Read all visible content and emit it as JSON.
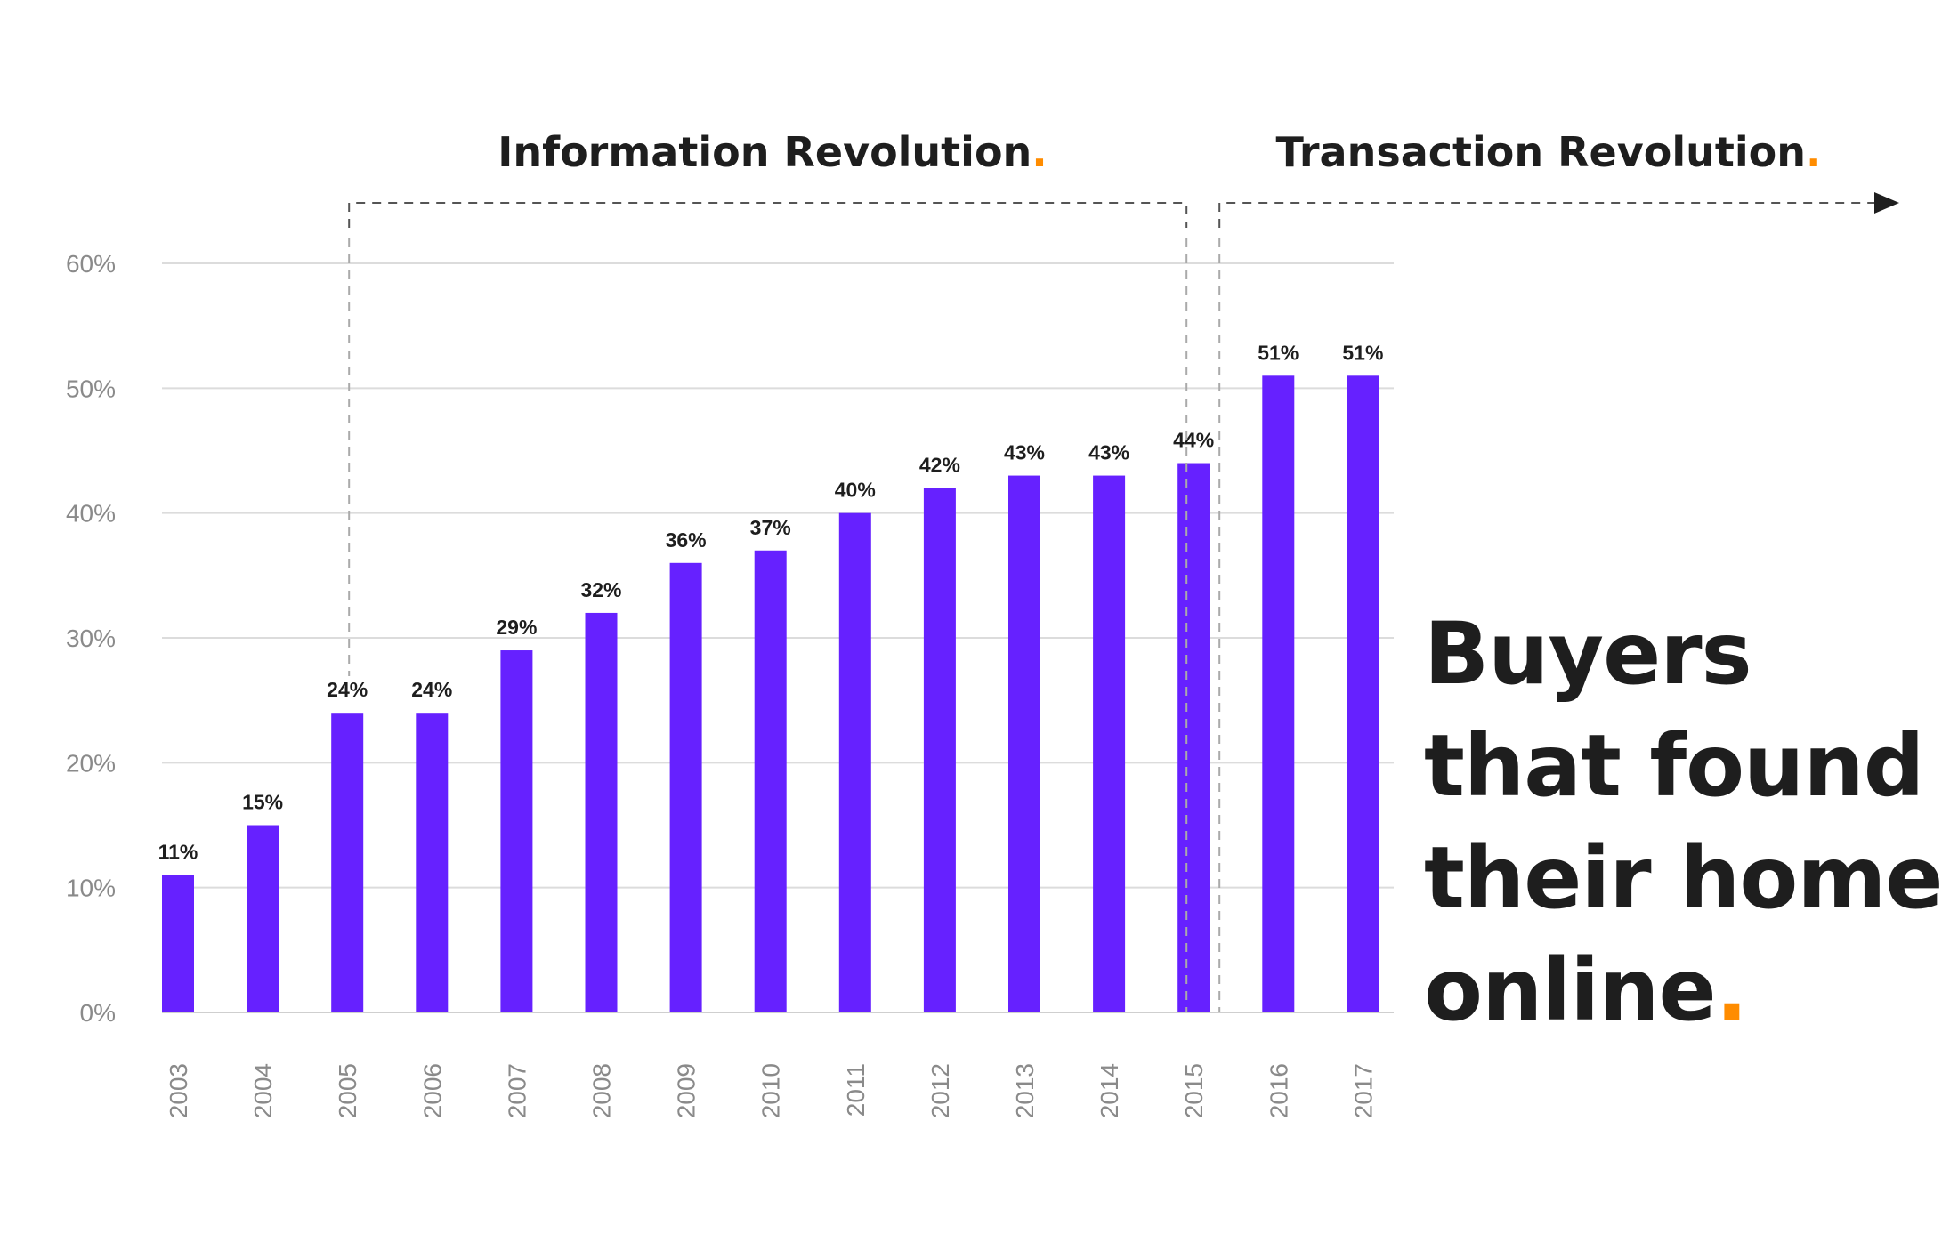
{
  "chart_data": {
    "type": "bar",
    "categories": [
      "2003",
      "2004",
      "2005",
      "2006",
      "2007",
      "2008",
      "2009",
      "2010",
      "2011",
      "2012",
      "2013",
      "2014",
      "2015",
      "2016",
      "2017"
    ],
    "values": [
      11,
      15,
      24,
      24,
      29,
      32,
      36,
      37,
      40,
      42,
      43,
      43,
      44,
      51,
      51
    ],
    "value_labels": [
      "11%",
      "15%",
      "24%",
      "24%",
      "29%",
      "32%",
      "36%",
      "37%",
      "40%",
      "42%",
      "43%",
      "43%",
      "44%",
      "51%",
      "51%"
    ],
    "y_ticks": [
      {
        "value": 0,
        "label": "0%"
      },
      {
        "value": 10,
        "label": "10%"
      },
      {
        "value": 20,
        "label": "20%"
      },
      {
        "value": 30,
        "label": "30%"
      },
      {
        "value": 40,
        "label": "40%"
      },
      {
        "value": 50,
        "label": "50%"
      },
      {
        "value": 60,
        "label": "60%"
      }
    ],
    "ylim": [
      0,
      60
    ],
    "grid": true,
    "bar_color": "#6621ff",
    "accent_color": "#ff8c00",
    "text_color": "#1e1e1e",
    "eras": [
      {
        "label": "Information Revolution",
        "dot": ".",
        "from": "2005",
        "to": "2015",
        "open_ended": false
      },
      {
        "label": "Transaction Revolution",
        "dot": ".",
        "from": "2015",
        "to": "2017",
        "open_ended": true
      }
    ]
  },
  "headline": {
    "lines": [
      "Buyers",
      "that found",
      "their home",
      "online"
    ],
    "dot": "."
  }
}
